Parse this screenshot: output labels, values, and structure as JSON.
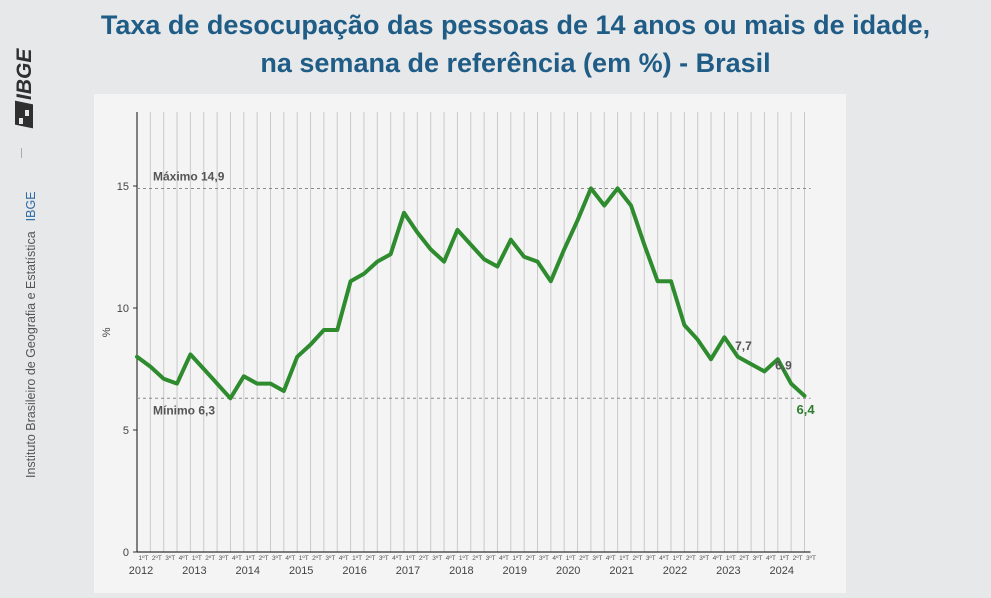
{
  "header": {
    "title_line1": "Taxa de desocupação das pessoas de 14 anos ou mais de idade,",
    "title_line2": "na semana de referência (em %) - Brasil"
  },
  "sidebar": {
    "logo_text": "IBGE",
    "institute": "Instituto Brasileiro de Geografia e Estatística",
    "short": "IBGE"
  },
  "colors": {
    "line": "#2e8b2e",
    "title": "#1f5c86",
    "reference": "#888888"
  },
  "chart_data": {
    "type": "line",
    "ylabel": "%",
    "ylim": [
      0,
      18
    ],
    "yticks": [
      0,
      5,
      10,
      15
    ],
    "quarter_labels": [
      "1ºT",
      "2ºT",
      "3ºT",
      "4ºT"
    ],
    "years": [
      "2012",
      "2013",
      "2014",
      "2015",
      "2016",
      "2017",
      "2018",
      "2019",
      "2020",
      "2021",
      "2022",
      "2023",
      "2024"
    ],
    "series": [
      {
        "values": [
          8.0,
          7.6,
          7.1,
          6.9,
          8.1,
          7.5,
          6.9,
          6.3,
          7.2,
          6.9,
          6.9,
          6.6,
          8.0,
          8.5,
          9.1,
          9.1,
          11.1,
          11.4,
          11.9,
          12.2,
          13.9,
          13.1,
          12.4,
          11.9,
          13.2,
          12.6,
          12.0,
          11.7,
          12.8,
          12.1,
          11.9,
          11.1,
          12.4,
          13.6,
          14.9,
          14.2,
          14.9,
          14.2,
          12.6,
          11.1,
          11.1,
          9.3,
          8.7,
          7.9,
          8.8,
          8.0,
          7.7,
          7.4,
          7.9,
          6.9,
          6.4
        ]
      }
    ],
    "reference_lines": [
      {
        "label": "Máximo 14,9",
        "value": 14.9
      },
      {
        "label": "Mínimo 6,3",
        "value": 6.3
      }
    ],
    "data_labels": [
      {
        "text": "7,7",
        "index": 46
      },
      {
        "text": "6,9",
        "index": 49
      },
      {
        "text": "6,4",
        "index": 50
      }
    ]
  }
}
